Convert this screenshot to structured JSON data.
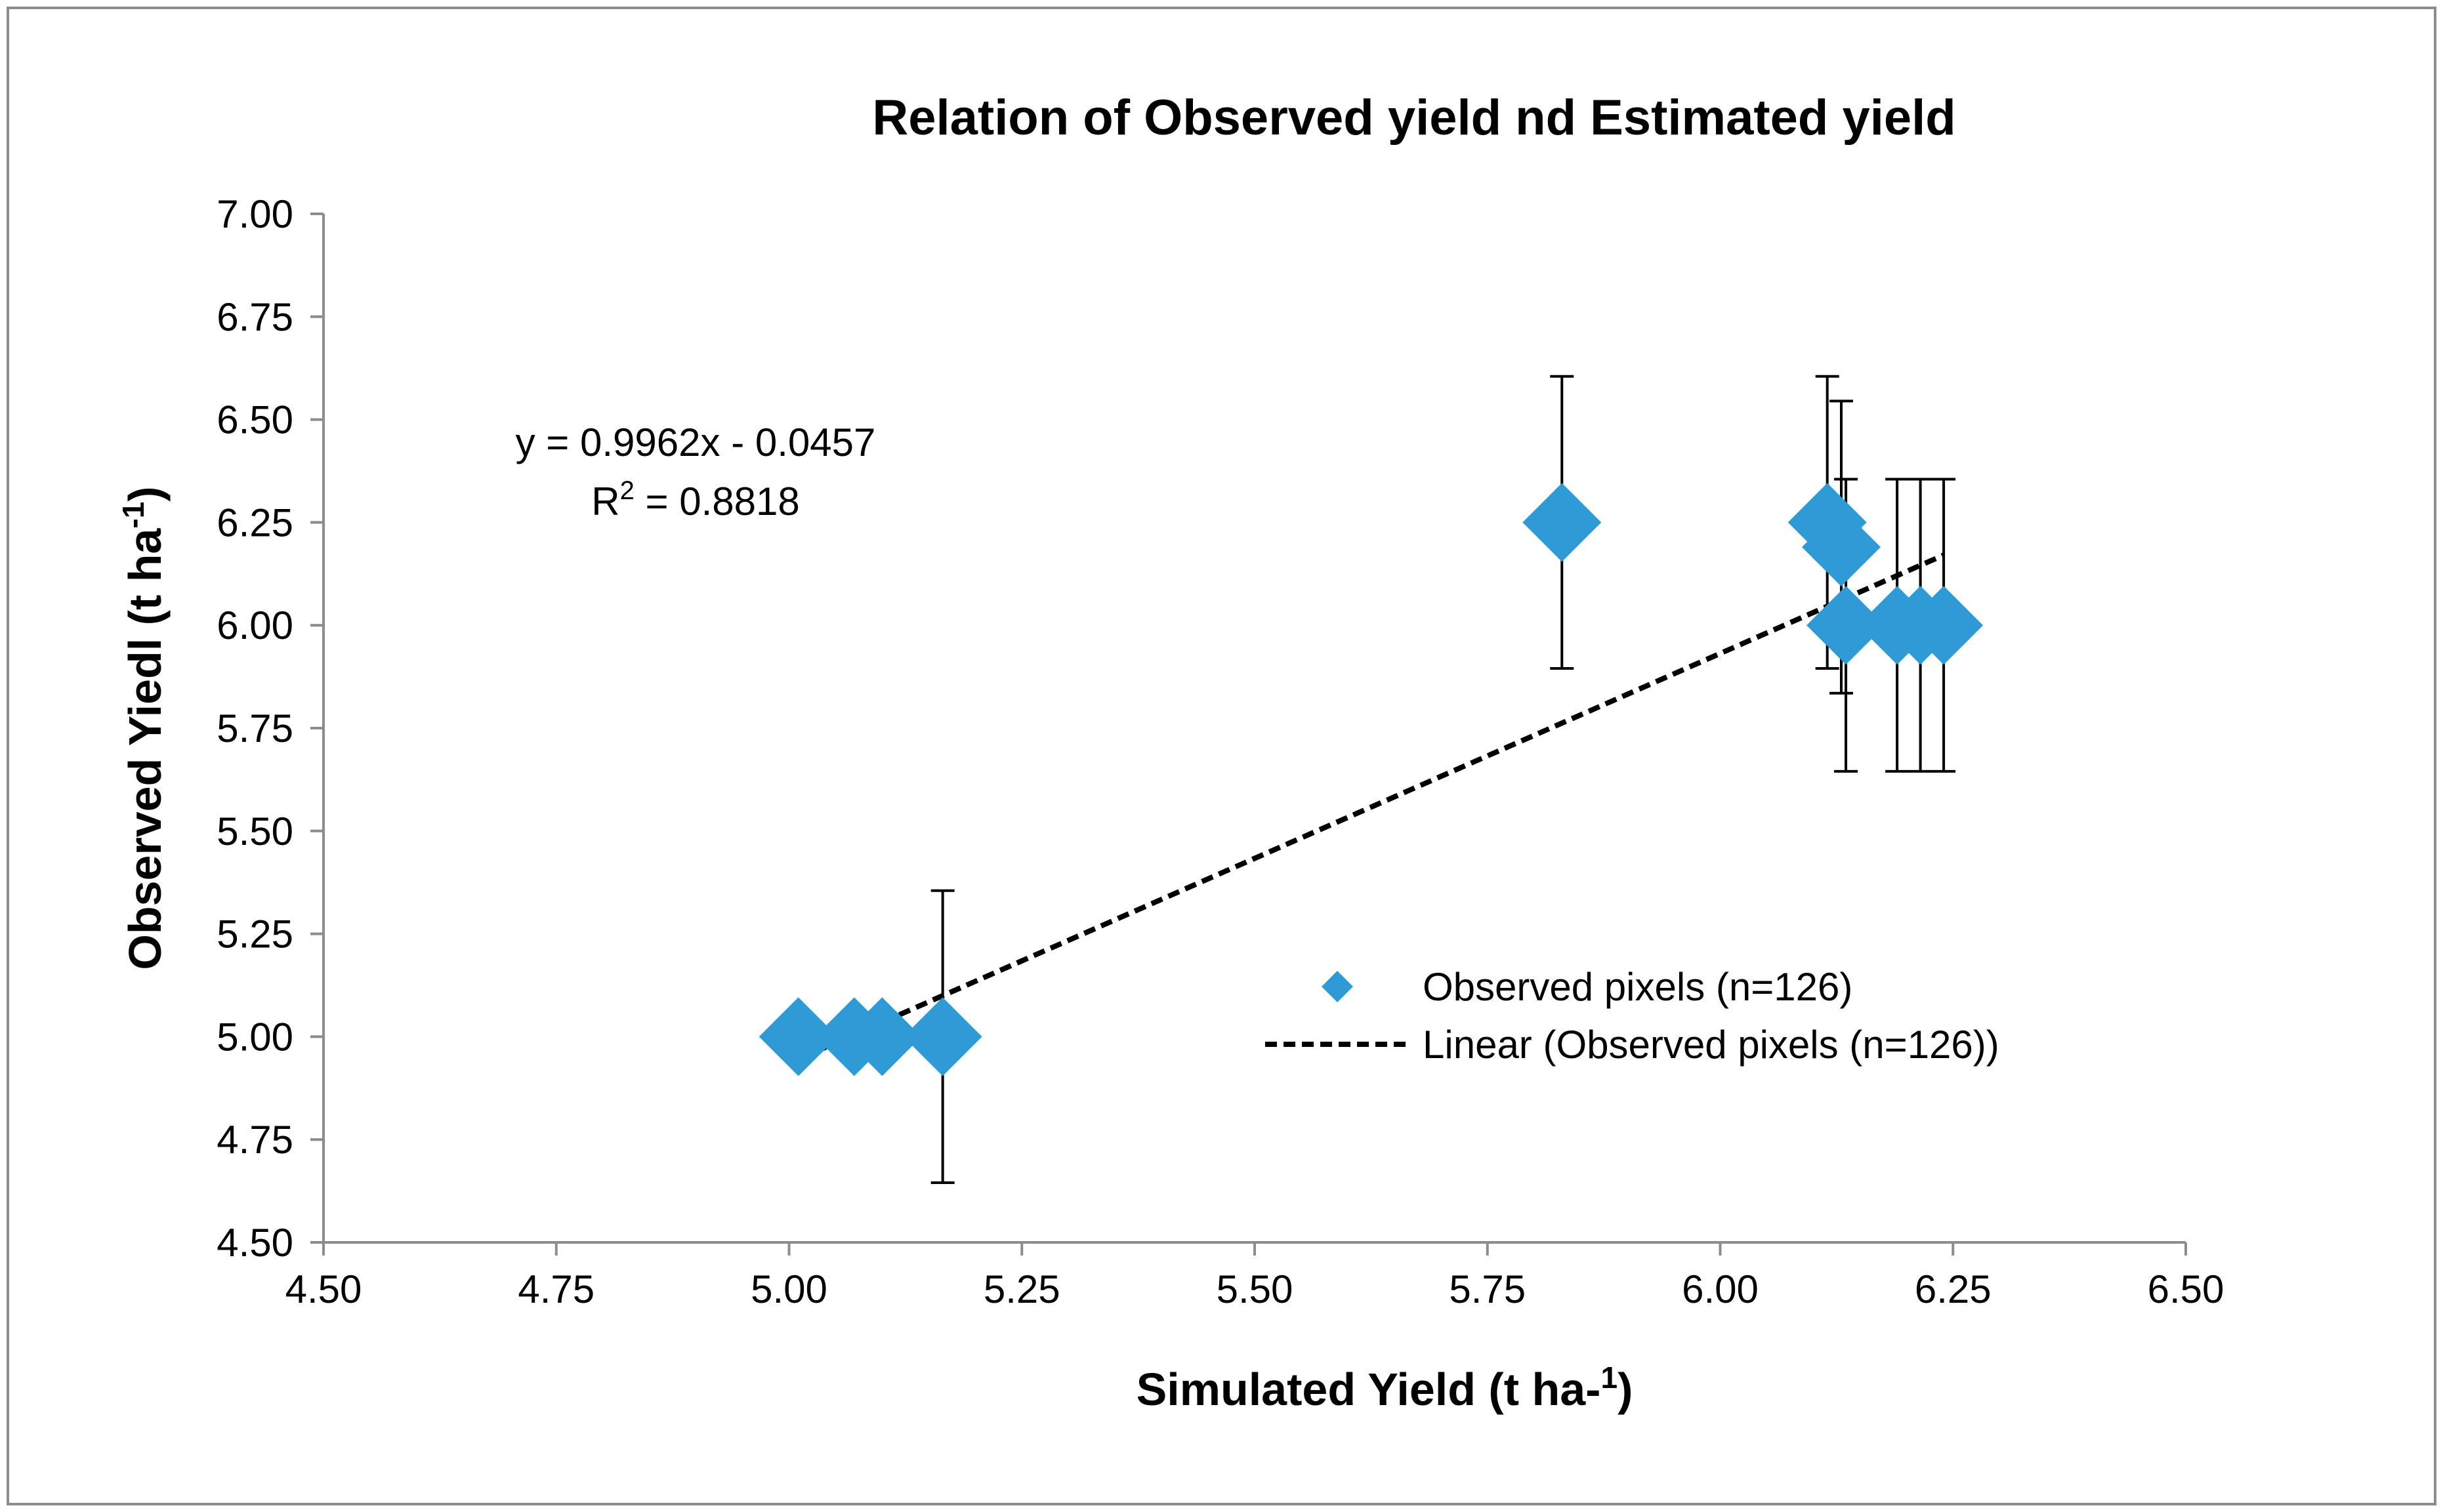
{
  "chart_data": {
    "type": "scatter",
    "title": "Relation of Observed yield nd Estimated yield",
    "xlabel": {
      "main": "Simulated Yield (t ha-",
      "sup": "1",
      "end": ")"
    },
    "ylabel": {
      "main": "Observed Yiedl (t ha",
      "sup": "-1",
      "end": ")"
    },
    "xlim": [
      4.5,
      6.5
    ],
    "ylim": [
      4.5,
      7.0
    ],
    "xticks": [
      "4.50",
      "4.75",
      "5.00",
      "5.25",
      "5.50",
      "5.75",
      "6.00",
      "6.25",
      "6.50"
    ],
    "yticks": [
      "4.50",
      "4.75",
      "5.00",
      "5.25",
      "5.50",
      "5.75",
      "6.00",
      "6.25",
      "6.50",
      "6.75",
      "7.00"
    ],
    "grid": false,
    "legend_position": "right-middle",
    "marker_color": "#2E9BD6",
    "series": [
      {
        "name": "Observed  pixels (n=126)",
        "marker": "diamond",
        "points": [
          {
            "x": 5.01,
            "y": 5.0
          },
          {
            "x": 5.07,
            "y": 5.0
          },
          {
            "x": 5.1,
            "y": 5.0
          },
          {
            "x": 5.165,
            "y": 5.0,
            "err_low": 4.645,
            "err_high": 5.355
          },
          {
            "x": 5.83,
            "y": 6.25,
            "err_low": 5.895,
            "err_high": 6.605
          },
          {
            "x": 6.115,
            "y": 6.25,
            "err_low": 5.895,
            "err_high": 6.605
          },
          {
            "x": 6.13,
            "y": 6.19,
            "err_low": 5.835,
            "err_high": 6.545
          },
          {
            "x": 6.135,
            "y": 6.0,
            "err_low": 5.645,
            "err_high": 6.355
          },
          {
            "x": 6.19,
            "y": 6.0,
            "err_low": 5.645,
            "err_high": 6.355
          },
          {
            "x": 6.215,
            "y": 6.0,
            "err_low": 5.645,
            "err_high": 6.355
          },
          {
            "x": 6.24,
            "y": 6.0,
            "err_low": 5.645,
            "err_high": 6.355
          }
        ]
      }
    ],
    "trendline": {
      "name": "Linear (Observed  pixels (n=126))",
      "slope": 0.9962,
      "intercept": -0.0457,
      "x_range": [
        5.01,
        6.24
      ],
      "color": "#000000",
      "equation": "y = 0.9962x - 0.0457",
      "r2_label": "R",
      "r2_sup": "2",
      "r2_value": " = 0.8818"
    }
  }
}
